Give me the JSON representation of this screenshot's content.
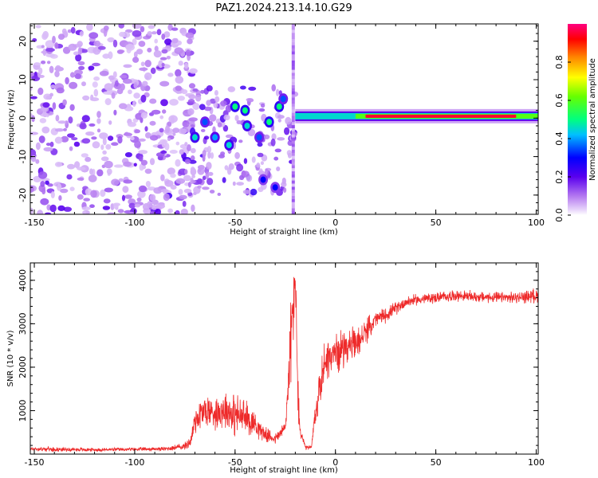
{
  "figure": {
    "title": "PAZ1.2024.213.14.10.G29"
  },
  "chart_data": [
    {
      "type": "heatmap",
      "xlabel": "Height of straight line (km)",
      "ylabel": "Frequency (Hz)",
      "xlim": [
        -152,
        101
      ],
      "ylim": [
        -25,
        24.5
      ],
      "xticks": [
        -150,
        -100,
        -50,
        0,
        50,
        100
      ],
      "yticks": [
        -20,
        -10,
        0,
        10,
        20
      ],
      "colorbar": {
        "label": "Normalized spectral amplitude",
        "range": [
          0,
          1
        ],
        "ticks": [
          "0.0",
          "0.2",
          "0.4",
          "0.6",
          "0.8"
        ],
        "colormap": "rainbow (white-violet-blue-cyan-green-yellow-red-magenta)"
      },
      "features": {
        "noisy_region_x": [
          -152,
          -75
        ],
        "fragmented_region_x": [
          -75,
          -20
        ],
        "vertical_artifact_x": -21,
        "carrier_line_x": [
          -20,
          101
        ],
        "carrier_frequency": 0.5,
        "carrier_peak_amplitude": 0.95
      },
      "blobs": [
        {
          "x": -70,
          "y": -5,
          "v": 0.45
        },
        {
          "x": -65,
          "y": -1,
          "v": 0.35
        },
        {
          "x": -60,
          "y": -5,
          "v": 0.4
        },
        {
          "x": -53,
          "y": -7,
          "v": 0.45
        },
        {
          "x": -50,
          "y": 3,
          "v": 0.5
        },
        {
          "x": -45,
          "y": 2,
          "v": 0.5
        },
        {
          "x": -44,
          "y": -2,
          "v": 0.45
        },
        {
          "x": -38,
          "y": -5,
          "v": 0.35
        },
        {
          "x": -33,
          "y": -1,
          "v": 0.5
        },
        {
          "x": -28,
          "y": 3,
          "v": 0.5
        },
        {
          "x": -26,
          "y": 5,
          "v": 0.35
        },
        {
          "x": -36,
          "y": -16,
          "v": 0.3
        },
        {
          "x": -30,
          "y": -18,
          "v": 0.3
        }
      ]
    },
    {
      "type": "line",
      "xlabel": "Height of straight line (km)",
      "ylabel": "SNR (10 * v/v)",
      "xlim": [
        -152,
        101
      ],
      "ylim": [
        0,
        4400
      ],
      "xticks": [
        -150,
        -100,
        -50,
        0,
        50,
        100
      ],
      "yticks": [
        1000,
        2000,
        3000,
        4000
      ],
      "series": [
        {
          "color": "#ee2a2a",
          "x": [
            -152,
            -140,
            -120,
            -100,
            -85,
            -75,
            -72,
            -70,
            -65,
            -60,
            -55,
            -50,
            -45,
            -40,
            -35,
            -30,
            -25,
            -23,
            -22,
            -21,
            -20,
            -19,
            -18,
            -15,
            -12,
            -10,
            -8,
            -5,
            0,
            5,
            10,
            15,
            20,
            25,
            30,
            35,
            40,
            50,
            60,
            70,
            80,
            90,
            100,
            101
          ],
          "y": [
            120,
            110,
            100,
            110,
            120,
            180,
            300,
            800,
            1000,
            950,
            1050,
            900,
            850,
            700,
            450,
            350,
            600,
            2000,
            2800,
            3300,
            4200,
            2000,
            600,
            150,
            150,
            900,
            1500,
            2200,
            2300,
            2500,
            2500,
            2800,
            3100,
            3200,
            3350,
            3500,
            3550,
            3600,
            3650,
            3620,
            3600,
            3600,
            3650,
            3600
          ],
          "spread": [
            60,
            60,
            50,
            50,
            60,
            100,
            200,
            450,
            500,
            450,
            550,
            600,
            500,
            350,
            200,
            150,
            250,
            900,
            1200,
            1300,
            500,
            1200,
            300,
            60,
            60,
            450,
            600,
            600,
            550,
            500,
            450,
            350,
            250,
            200,
            180,
            160,
            150,
            150,
            150,
            150,
            150,
            150,
            200,
            200
          ]
        }
      ]
    }
  ]
}
